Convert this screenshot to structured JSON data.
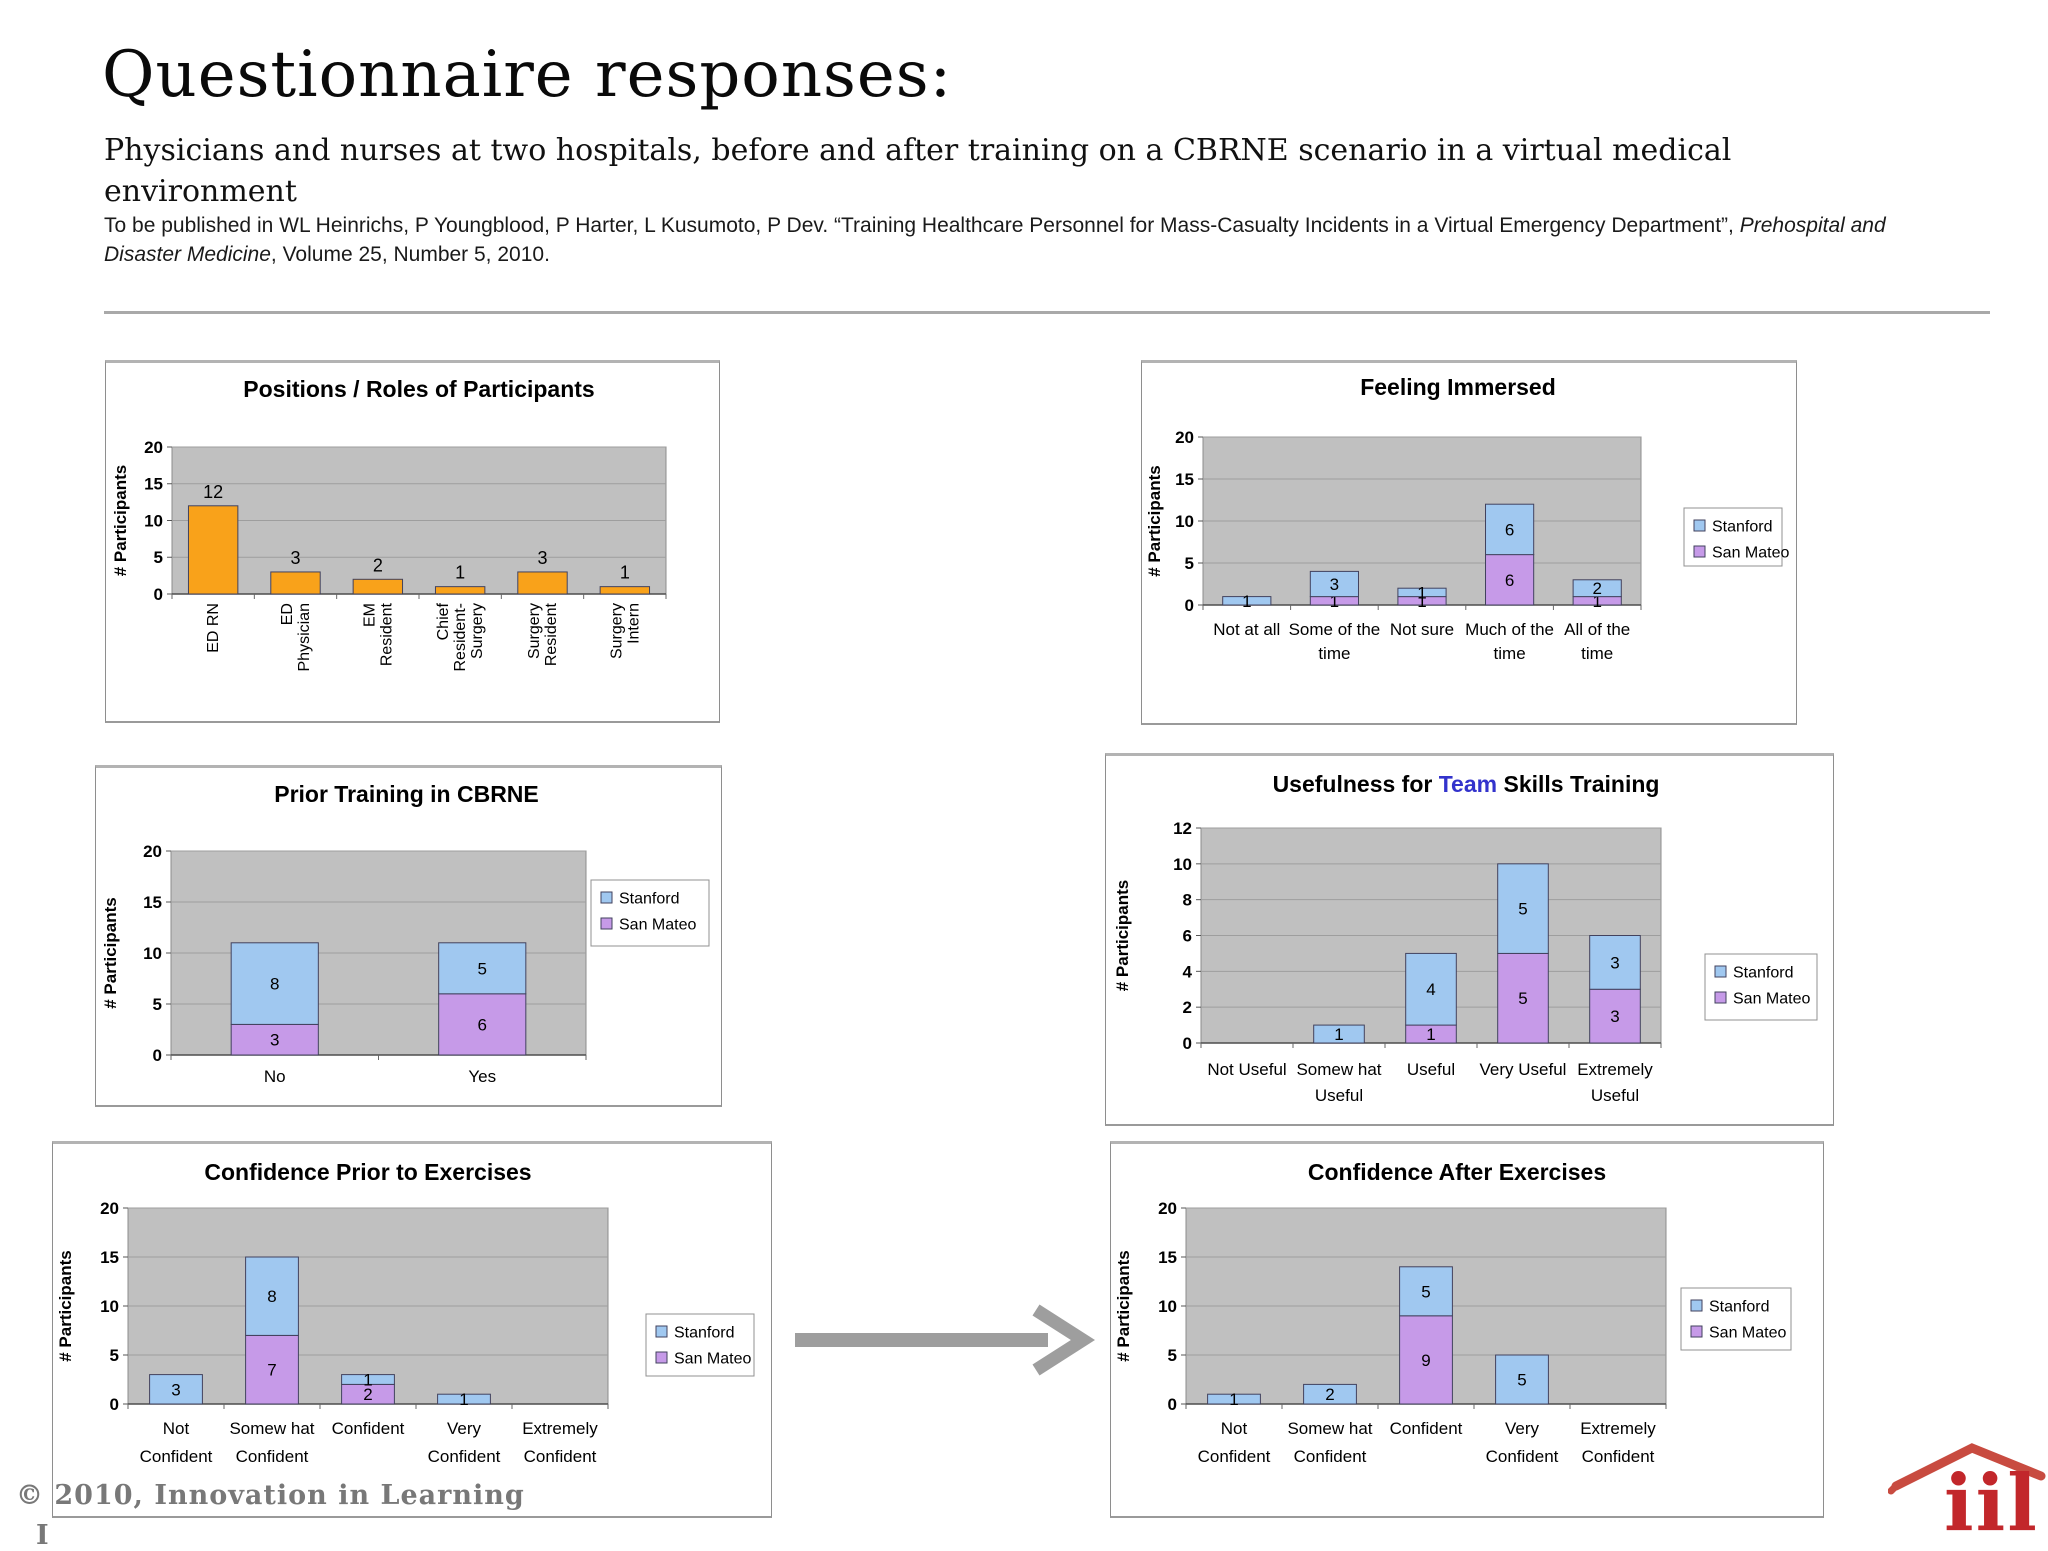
{
  "header": {
    "title": "Questionnaire responses:",
    "subtitle": "Physicians and nurses at two hospitals, before and after training on a CBRNE scenario in a virtual medical environment",
    "citation_prefix": "To be published in WL Heinrichs, P Youngblood, P Harter, L Kusumoto, P Dev. “Training Healthcare Personnel for Mass-Casualty Incidents in a Virtual Emergency Department”, ",
    "citation_italic": "Prehospital and Disaster Medicine",
    "citation_suffix": ", Volume 25, Number 5, 2010."
  },
  "footer": {
    "copyright": "© 2010, Innovation in Learning",
    "copyright_clipped": "I",
    "logo_text": "iil"
  },
  "colors": {
    "stanford_blue": "#A0C8F0",
    "san_mateo_purple": "#C69AE8",
    "orange": "#F9A21A",
    "team_highlight": "#3333CC",
    "plot_background": "#C0C0C0",
    "gridline": "#9E9E9E",
    "logo_red": "#C2272B",
    "arrow_gray": "#9E9E9E"
  },
  "chart_data": [
    {
      "id": "positions_roles",
      "type": "bar",
      "title": "Positions / Roles of Participants",
      "ylabel": "# Participants",
      "ylim": [
        0,
        20
      ],
      "yticks": [
        0,
        5,
        10,
        15,
        20
      ],
      "grid": true,
      "legend_position": "none",
      "categories": [
        [
          "ED RN"
        ],
        [
          "ED",
          "Physician"
        ],
        [
          "EM",
          "Resident"
        ],
        [
          "Chief",
          "Resident-",
          "Surgery"
        ],
        [
          "Surgery",
          "Resident"
        ],
        [
          "Surgery",
          "Intern"
        ]
      ],
      "stacked": false,
      "series": [
        {
          "name": "Participants",
          "color": "#F9A21A",
          "values": [
            12,
            3,
            2,
            1,
            3,
            1
          ]
        }
      ]
    },
    {
      "id": "feeling_immersed",
      "type": "bar",
      "title": "Feeling Immersed",
      "ylabel": "# Participants",
      "ylim": [
        0,
        20
      ],
      "yticks": [
        0,
        5,
        10,
        15,
        20
      ],
      "grid": true,
      "legend_position": "right",
      "legend_labels": [
        "Stanford",
        "San Mateo"
      ],
      "categories": [
        [
          "Not at all"
        ],
        [
          "Some of the",
          "time"
        ],
        [
          "Not sure"
        ],
        [
          "Much of the",
          "time"
        ],
        [
          "All of the",
          "time"
        ]
      ],
      "stacked": true,
      "series": [
        {
          "name": "San Mateo",
          "color": "#C69AE8",
          "values": [
            0,
            1,
            1,
            6,
            1
          ]
        },
        {
          "name": "Stanford",
          "color": "#A0C8F0",
          "values": [
            1,
            3,
            1,
            6,
            2
          ]
        }
      ]
    },
    {
      "id": "prior_training",
      "type": "bar",
      "title": "Prior Training in CBRNE",
      "ylabel": "# Participants",
      "ylim": [
        0,
        20
      ],
      "yticks": [
        0,
        5,
        10,
        15,
        20
      ],
      "grid": true,
      "legend_position": "right",
      "legend_labels": [
        "Stanford",
        "San Mateo"
      ],
      "categories": [
        [
          "No"
        ],
        [
          "Yes"
        ]
      ],
      "stacked": true,
      "series": [
        {
          "name": "San Mateo",
          "color": "#C69AE8",
          "values": [
            3,
            6
          ]
        },
        {
          "name": "Stanford",
          "color": "#A0C8F0",
          "values": [
            8,
            5
          ]
        }
      ]
    },
    {
      "id": "usefulness_team",
      "type": "bar",
      "title": "Usefulness for Team Skills Training",
      "title_parts": [
        {
          "text": "Usefulness for ",
          "color": "#000000"
        },
        {
          "text": "Team",
          "color": "#3333CC"
        },
        {
          "text": " Skills Training",
          "color": "#000000"
        }
      ],
      "ylabel": "# Participants",
      "ylim": [
        0,
        12
      ],
      "yticks": [
        0,
        2,
        4,
        6,
        8,
        10,
        12
      ],
      "grid": true,
      "legend_position": "right",
      "legend_labels": [
        "Stanford",
        "San Mateo"
      ],
      "categories": [
        [
          "Not Useful"
        ],
        [
          "Somew hat",
          "Useful"
        ],
        [
          "Useful"
        ],
        [
          "Very Useful"
        ],
        [
          "Extremely",
          "Useful"
        ]
      ],
      "stacked": true,
      "series": [
        {
          "name": "San Mateo",
          "color": "#C69AE8",
          "values": [
            0,
            0,
            1,
            5,
            3
          ]
        },
        {
          "name": "Stanford",
          "color": "#A0C8F0",
          "values": [
            0,
            1,
            4,
            5,
            3
          ]
        }
      ]
    },
    {
      "id": "confidence_prior",
      "type": "bar",
      "title": "Confidence Prior to Exercises",
      "ylabel": "# Participants",
      "ylim": [
        0,
        20
      ],
      "yticks": [
        0,
        5,
        10,
        15,
        20
      ],
      "grid": true,
      "legend_position": "right",
      "legend_labels": [
        "Stanford",
        "San Mateo"
      ],
      "categories": [
        [
          "Not",
          "Confident"
        ],
        [
          "Somew hat",
          "Confident"
        ],
        [
          "Confident"
        ],
        [
          "Very",
          "Confident"
        ],
        [
          "Extremely",
          "Confident"
        ]
      ],
      "stacked": true,
      "series": [
        {
          "name": "San Mateo",
          "color": "#C69AE8",
          "values": [
            0,
            7,
            2,
            0,
            0
          ]
        },
        {
          "name": "Stanford",
          "color": "#A0C8F0",
          "values": [
            3,
            8,
            1,
            1,
            0
          ]
        }
      ]
    },
    {
      "id": "confidence_after",
      "type": "bar",
      "title": "Confidence After Exercises",
      "ylabel": "# Participants",
      "ylim": [
        0,
        20
      ],
      "yticks": [
        0,
        5,
        10,
        15,
        20
      ],
      "grid": true,
      "legend_position": "right",
      "legend_labels": [
        "Stanford",
        "San Mateo"
      ],
      "categories": [
        [
          "Not",
          "Confident"
        ],
        [
          "Somew hat",
          "Confident"
        ],
        [
          "Confident"
        ],
        [
          "Very",
          "Confident"
        ],
        [
          "Extremely",
          "Confident"
        ]
      ],
      "stacked": true,
      "series": [
        {
          "name": "San Mateo",
          "color": "#C69AE8",
          "values": [
            0,
            0,
            9,
            0,
            0
          ]
        },
        {
          "name": "Stanford",
          "color": "#A0C8F0",
          "values": [
            1,
            2,
            5,
            5,
            0
          ]
        }
      ]
    }
  ]
}
